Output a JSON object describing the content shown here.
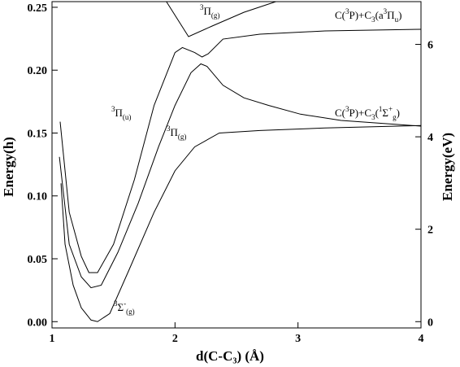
{
  "chart_data": {
    "type": "line",
    "xlabel": "d(C-C₃) (Å)",
    "ylabel": "Energy(h)",
    "y2label": "Energy(eV)",
    "xlim": [
      1,
      4
    ],
    "xticks": [
      1,
      2,
      3,
      4
    ],
    "ylim": [
      -0.005,
      0.2545
    ],
    "yticks": [
      {
        "value": 0,
        "label": "0.00"
      },
      {
        "value": 0.05,
        "label": "0.05"
      },
      {
        "value": 0.1,
        "label": "0.10"
      },
      {
        "value": 0.15,
        "label": "0.15"
      },
      {
        "value": 0.2,
        "label": "0.20"
      },
      {
        "value": 0.25,
        "label": "0.25"
      }
    ],
    "y2lim": [
      -0.136,
      6.925
    ],
    "y2ticks": [
      0,
      2,
      4,
      6
    ],
    "series": [
      {
        "color": "#000000",
        "x": [
          1.073,
          1.106,
          1.172,
          1.238,
          1.317,
          1.37,
          1.47,
          1.63,
          1.83,
          2.0,
          2.16,
          2.36,
          2.69,
          3.22,
          4.0
        ],
        "values": [
          0.11,
          0.0615,
          0.029,
          0.011,
          0.0013,
          0,
          0.0065,
          0.042,
          0.087,
          0.12,
          0.139,
          0.15,
          0.152,
          0.154,
          0.156
        ]
      },
      {
        "color": "#000000",
        "x": [
          1.06,
          1.14,
          1.238,
          1.317,
          1.4,
          1.535,
          1.7,
          1.866,
          2.0,
          2.13,
          2.21,
          2.26,
          2.39,
          2.56,
          2.76,
          3.02,
          3.35,
          4.0
        ],
        "values": [
          0.131,
          0.0615,
          0.0356,
          0.027,
          0.029,
          0.055,
          0.094,
          0.139,
          0.172,
          0.198,
          0.205,
          0.203,
          0.188,
          0.178,
          0.172,
          0.165,
          0.16,
          0.1555
        ]
      },
      {
        "color": "#000000",
        "x": [
          1.066,
          1.14,
          1.238,
          1.3,
          1.37,
          1.5,
          1.67,
          1.83,
          2.0,
          2.06,
          2.16,
          2.22,
          2.27,
          2.39,
          2.69,
          3.22,
          4.0
        ],
        "values": [
          0.159,
          0.087,
          0.052,
          0.039,
          0.039,
          0.0615,
          0.113,
          0.172,
          0.214,
          0.218,
          0.214,
          0.2105,
          0.213,
          0.2247,
          0.2286,
          0.2312,
          0.2325
        ]
      },
      {
        "color": "#000000",
        "x": [
          1.93,
          2.11,
          2.3,
          2.56,
          2.82
        ],
        "values": [
          0.2545,
          0.2267,
          0.235,
          0.246,
          0.2545
        ]
      }
    ],
    "annotations": [
      {
        "parts": [
          [
            "C("
          ],
          [
            "3",
            "sup"
          ],
          [
            "P)+C"
          ],
          [
            "3",
            "sub"
          ],
          [
            "(a"
          ],
          [
            "3",
            "sup"
          ],
          [
            "Π"
          ],
          [
            "u",
            "sub"
          ],
          [
            ")"
          ]
        ]
      },
      {
        "parts": [
          [
            "C("
          ],
          [
            "3",
            "sup"
          ],
          [
            "P)+C"
          ],
          [
            "3",
            "sub"
          ],
          [
            "("
          ],
          [
            "1",
            "sup"
          ],
          [
            "Σ"
          ],
          [
            "+",
            "sup"
          ],
          [
            "g",
            "sub"
          ],
          [
            ")"
          ]
        ]
      },
      {
        "parts": [
          [
            "3",
            "sup"
          ],
          [
            "Π"
          ],
          [
            "(g)",
            "sub"
          ]
        ]
      },
      {
        "parts": [
          [
            "3",
            "sup"
          ],
          [
            "Π"
          ],
          [
            "(u)",
            "sub"
          ]
        ]
      },
      {
        "parts": [
          [
            "3",
            "sup"
          ],
          [
            "Π"
          ],
          [
            "(g)",
            "sub"
          ]
        ]
      },
      {
        "parts": [
          [
            "3",
            "sup"
          ],
          [
            "Σ"
          ],
          [
            "-",
            "sup"
          ],
          [
            "(g)",
            "sub"
          ]
        ]
      }
    ]
  }
}
